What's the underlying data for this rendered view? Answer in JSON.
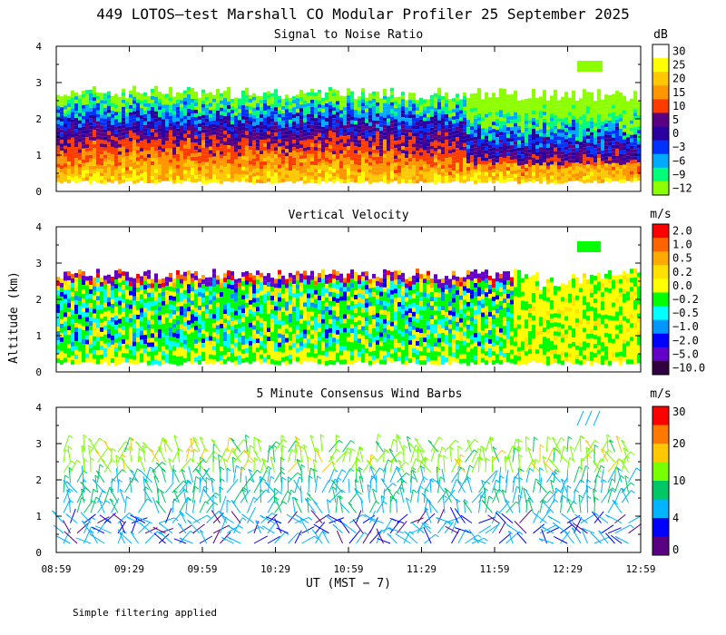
{
  "title": "449 LOTOS—test Marshall CO Modular Profiler 25 September 2025",
  "ylabel": "Altitude (km)",
  "xlabel": "UT  (MST − 7)",
  "footnote": "Simple filtering applied",
  "chart_data": [
    {
      "type": "heatmap",
      "title": "Signal to Noise Ratio",
      "unit": "dB",
      "xticks": [
        "08:59",
        "09:29",
        "09:59",
        "10:29",
        "10:59",
        "11:29",
        "11:59",
        "12:29",
        "12:59"
      ],
      "xlim_hours_ut": [
        8.983,
        12.983
      ],
      "ylim_km": [
        0,
        4
      ],
      "yticks": [
        "0",
        "1",
        "2",
        "3",
        "4"
      ],
      "echo_top_km": [
        2.75,
        2.65
      ],
      "echo_bottom_km": 0.3,
      "colorbar": {
        "labels": [
          "30",
          "25",
          "20",
          "15",
          "10",
          "5",
          "0",
          "−3",
          "−6",
          "−9",
          "−12"
        ],
        "colors": [
          "#ffffff",
          "#ffff00",
          "#ffc800",
          "#ff9600",
          "#ff3c00",
          "#5a0082",
          "#2b00a0",
          "#0032ff",
          "#00aaff",
          "#00ff78",
          "#8cff00"
        ]
      }
    },
    {
      "type": "heatmap",
      "title": "Vertical Velocity",
      "unit": "m/s",
      "xticks": [
        "08:59",
        "09:29",
        "09:59",
        "10:29",
        "10:59",
        "11:29",
        "11:59",
        "12:29",
        "12:59"
      ],
      "xlim_hours_ut": [
        8.983,
        12.983
      ],
      "ylim_km": [
        0,
        4
      ],
      "yticks": [
        "0",
        "1",
        "2",
        "3",
        "4"
      ],
      "colorbar": {
        "labels": [
          "2.0",
          "1.0",
          "0.5",
          "0.2",
          "0.0",
          "−0.2",
          "−0.5",
          "−1.0",
          "−2.0",
          "−5.0",
          "−10.0"
        ],
        "colors": [
          "#ff0000",
          "#ff6400",
          "#ffaa00",
          "#ffe100",
          "#ffff00",
          "#00ff00",
          "#00ffff",
          "#0096ff",
          "#0000ff",
          "#6400c8",
          "#300040"
        ]
      }
    },
    {
      "type": "wind_barbs",
      "title": "5 Minute Consensus Wind Barbs",
      "unit": "m/s",
      "xticks": [
        "08:59",
        "09:29",
        "09:59",
        "10:29",
        "10:59",
        "11:29",
        "11:59",
        "12:29",
        "12:59"
      ],
      "xlim_hours_ut": [
        8.983,
        12.983
      ],
      "ylim_km": [
        0,
        4
      ],
      "yticks": [
        "0",
        "1",
        "2",
        "3",
        "4"
      ],
      "speed_by_level_m_s": [
        {
          "alt_km": 0.5,
          "speed": 4
        },
        {
          "alt_km": 1.5,
          "speed": 7
        },
        {
          "alt_km": 2.5,
          "speed": 12
        }
      ],
      "colorbar": {
        "labels": [
          "30",
          "20",
          "10",
          "4",
          "0"
        ],
        "colors": [
          "#ff0000",
          "#ff7800",
          "#ffc800",
          "#78ff00",
          "#00c864",
          "#00b4ff",
          "#0000ff",
          "#5a0082"
        ]
      }
    }
  ]
}
